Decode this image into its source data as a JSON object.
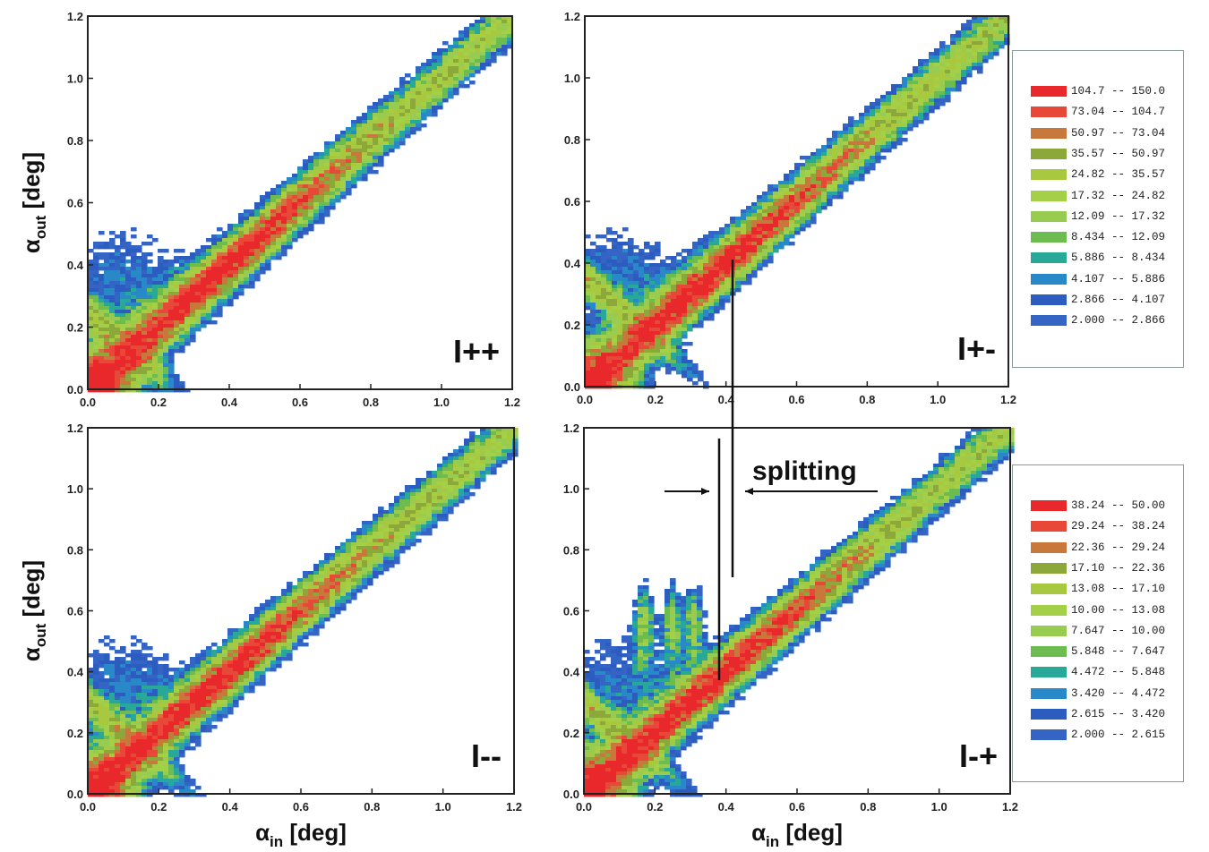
{
  "chart_data": {
    "type": "heatmap",
    "x_range": [
      0.0,
      1.2
    ],
    "y_range": [
      0.0,
      1.2
    ],
    "x_ticks": [
      "0.0",
      "0.2",
      "0.4",
      "0.6",
      "0.8",
      "1.0",
      "1.2"
    ],
    "y_ticks": [
      "0.0",
      "0.2",
      "0.4",
      "0.6",
      "0.8",
      "1.0",
      "1.2"
    ],
    "panels": [
      {
        "label": "I++",
        "ylabel": "α_out [deg]",
        "xlabel": "",
        "legend": "top",
        "lobes": [],
        "branch": 0.25
      },
      {
        "label": "I+-",
        "ylabel": "",
        "xlabel": "",
        "legend": "top",
        "lobes": [],
        "branch": 0.35
      },
      {
        "label": "I--",
        "ylabel": "α_out [deg]",
        "xlabel": "α_in [deg]",
        "legend": "bottom",
        "lobes": [],
        "branch": 0.3
      },
      {
        "label": "I-+",
        "ylabel": "",
        "xlabel": "α_in [deg]",
        "legend": "bottom",
        "lobes": [
          0.17,
          0.25,
          0.31
        ],
        "branch": 0.3
      }
    ],
    "annotation": "splitting",
    "legend_top": [
      {
        "range": "104.7 -- 150.0",
        "color": "#e8282a"
      },
      {
        "range": "73.04 -- 104.7",
        "color": "#e84838"
      },
      {
        "range": "50.97 -- 73.04",
        "color": "#c8783a"
      },
      {
        "range": "35.57 -- 50.97",
        "color": "#8ca83a"
      },
      {
        "range": "24.82 -- 35.57",
        "color": "#a8c840"
      },
      {
        "range": "17.32 -- 24.82",
        "color": "#a4d048"
      },
      {
        "range": "12.09 -- 17.32",
        "color": "#98cc50"
      },
      {
        "range": "8.434 -- 12.09",
        "color": "#6cbc50"
      },
      {
        "range": "5.886 -- 8.434",
        "color": "#28a898"
      },
      {
        "range": "4.107 -- 5.886",
        "color": "#2888c8"
      },
      {
        "range": "2.866 -- 4.107",
        "color": "#2c5cc0"
      },
      {
        "range": "2.000 -- 2.866",
        "color": "#3464c4"
      }
    ],
    "legend_bottom": [
      {
        "range": "38.24 -- 50.00",
        "color": "#e8282a"
      },
      {
        "range": "29.24 -- 38.24",
        "color": "#e84838"
      },
      {
        "range": "22.36 -- 29.24",
        "color": "#c8783a"
      },
      {
        "range": "17.10 -- 22.36",
        "color": "#8ca83a"
      },
      {
        "range": "13.08 -- 17.10",
        "color": "#a8c840"
      },
      {
        "range": "10.00 -- 13.08",
        "color": "#a4d048"
      },
      {
        "range": "7.647 -- 10.00",
        "color": "#98cc50"
      },
      {
        "range": "5.848 -- 7.647",
        "color": "#6cbc50"
      },
      {
        "range": "4.472 -- 5.848",
        "color": "#28a898"
      },
      {
        "range": "3.420 -- 4.472",
        "color": "#2888c8"
      },
      {
        "range": "2.615 -- 3.420",
        "color": "#2c5cc0"
      },
      {
        "range": "2.000 -- 2.615",
        "color": "#3464c4"
      }
    ]
  }
}
